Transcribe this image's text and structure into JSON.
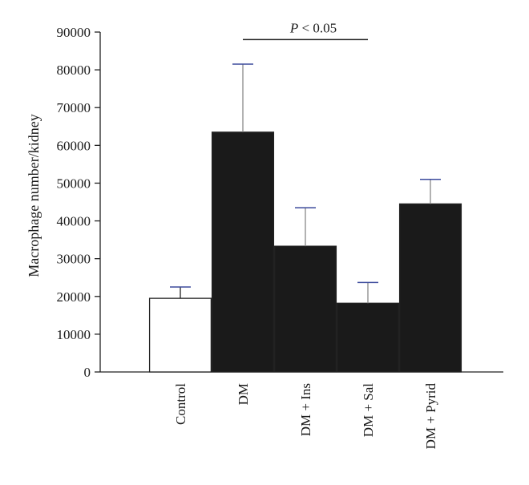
{
  "chart_data": {
    "type": "bar",
    "title": "",
    "xlabel": "",
    "ylabel": "Macrophage number/kidney",
    "ylim": [
      0,
      90000
    ],
    "yticks": [
      0,
      10000,
      20000,
      30000,
      40000,
      50000,
      60000,
      70000,
      80000,
      90000
    ],
    "categories": [
      "Control",
      "DM",
      "DM + Ins",
      "DM + Sal",
      "DM + Pyrid"
    ],
    "values": [
      19500,
      63500,
      33300,
      18200,
      44500
    ],
    "error_upper": [
      22500,
      81500,
      43500,
      23700,
      51000
    ],
    "bar_colors": [
      "#ffffff",
      "#1a1a1a",
      "#1a1a1a",
      "#1a1a1a",
      "#1a1a1a"
    ],
    "error_bar_color": "#3b4a9c",
    "grid": false,
    "legend": "none",
    "annotation": {
      "p_symbol": "P",
      "text": "< 0.05",
      "from_category": "DM",
      "to_category": "DM + Sal",
      "level": 88000
    }
  }
}
